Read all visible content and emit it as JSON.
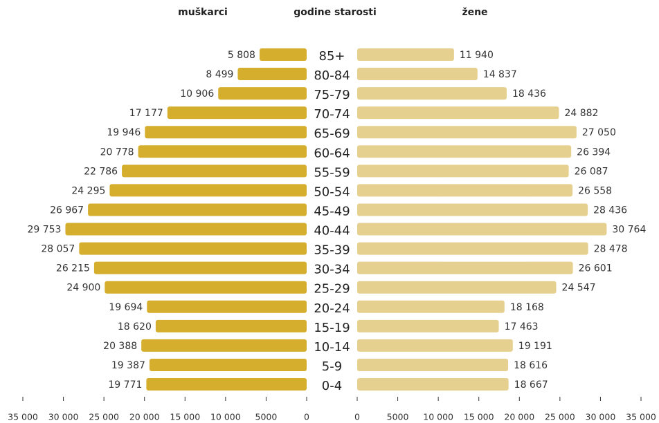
{
  "chart_data": {
    "type": "pyramid",
    "category_label": "godine starosti",
    "categories": [
      "85+",
      "80-84",
      "75-79",
      "70-74",
      "65-69",
      "60-64",
      "55-59",
      "50-54",
      "45-49",
      "40-44",
      "35-39",
      "30-34",
      "25-29",
      "20-24",
      "15-19",
      "10-14",
      "5-9",
      "0-4"
    ],
    "series": [
      {
        "name": "muškarci",
        "color": "#d4ae2c",
        "values": [
          5808,
          8499,
          10906,
          17177,
          19946,
          20778,
          22786,
          24295,
          26967,
          29753,
          28057,
          26215,
          24900,
          19694,
          18620,
          20388,
          19387,
          19771
        ],
        "value_labels": [
          "5 808",
          "8 499",
          "10 906",
          "17 177",
          "19 946",
          "20 778",
          "22 786",
          "24 295",
          "26 967",
          "29 753",
          "28 057",
          "26 215",
          "24 900",
          "19 694",
          "18 620",
          "20 388",
          "19 387",
          "19 771"
        ]
      },
      {
        "name": "žene",
        "color": "#e6d08f",
        "values": [
          11940,
          14837,
          18436,
          24882,
          27050,
          26394,
          26087,
          26558,
          28436,
          30764,
          28478,
          26601,
          24547,
          18168,
          17463,
          19191,
          18616,
          18667
        ],
        "value_labels": [
          "11 940",
          "14 837",
          "18 436",
          "24 882",
          "27 050",
          "26 394",
          "26 087",
          "26 558",
          "28 436",
          "30 764",
          "28 478",
          "26 601",
          "24 547",
          "18 168",
          "17 463",
          "19 191",
          "18 616",
          "18 667"
        ]
      }
    ],
    "xlim": [
      0,
      35000
    ],
    "xticks": [
      0,
      5000,
      {
        "value": 10000,
        "label": "10 000"
      },
      {
        "value": 15000,
        "label": "15 000"
      },
      {
        "value": 20000,
        "label": "20 000"
      },
      {
        "value": 25000,
        "label": "25 000"
      },
      {
        "value": 30000,
        "label": "30 000"
      },
      {
        "value": 35000,
        "label": "35 000"
      }
    ]
  }
}
